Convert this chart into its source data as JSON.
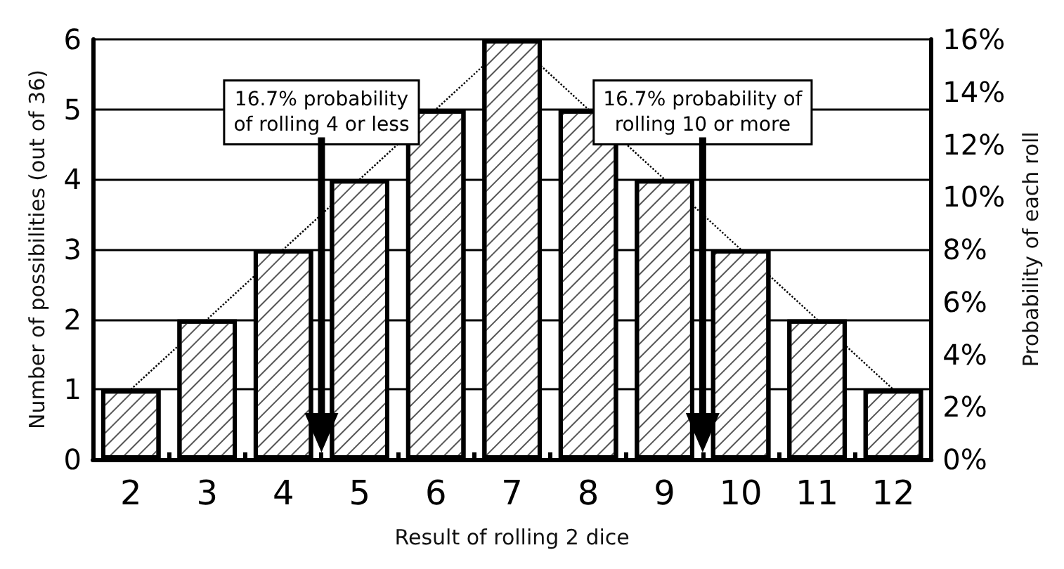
{
  "chart_data": {
    "type": "bar",
    "xlabel": "Result of rolling 2 dice",
    "ylabel": "Number of possibilities (out of 36)",
    "y2label": "Probability of each roll",
    "categories": [
      "2",
      "3",
      "4",
      "5",
      "6",
      "7",
      "8",
      "9",
      "10",
      "11",
      "12"
    ],
    "series": [
      {
        "color": "#ffffff",
        "values": [
          1,
          2,
          3,
          4,
          5,
          6,
          5,
          4,
          3,
          2,
          1
        ]
      },
      {
        "type": "line",
        "color": "#000000",
        "line_style": "dotted",
        "marker": "none",
        "values": [
          1,
          2,
          3,
          4,
          5,
          6,
          5,
          4,
          3,
          2,
          1
        ]
      }
    ],
    "ylim": [
      0,
      6
    ],
    "yticks": [
      0,
      1,
      2,
      3,
      4,
      5,
      6
    ],
    "y2lim": [
      0,
      16
    ],
    "y2ticks": [
      {
        "value": 0,
        "label": "0%"
      },
      {
        "value": 2,
        "label": "2%"
      },
      {
        "value": 4,
        "label": "4%"
      },
      {
        "value": 6,
        "label": "6%"
      },
      {
        "value": 8,
        "label": "8%"
      },
      {
        "value": 10,
        "label": "10%"
      },
      {
        "value": 12,
        "label": "12%"
      },
      {
        "value": 14,
        "label": "14%"
      },
      {
        "value": 16,
        "label": "16%"
      }
    ],
    "annotations": [
      "16.7% probability\nof rolling 4 or less",
      "16.7% probability of\nrolling 10 or more"
    ],
    "grid": "y"
  }
}
